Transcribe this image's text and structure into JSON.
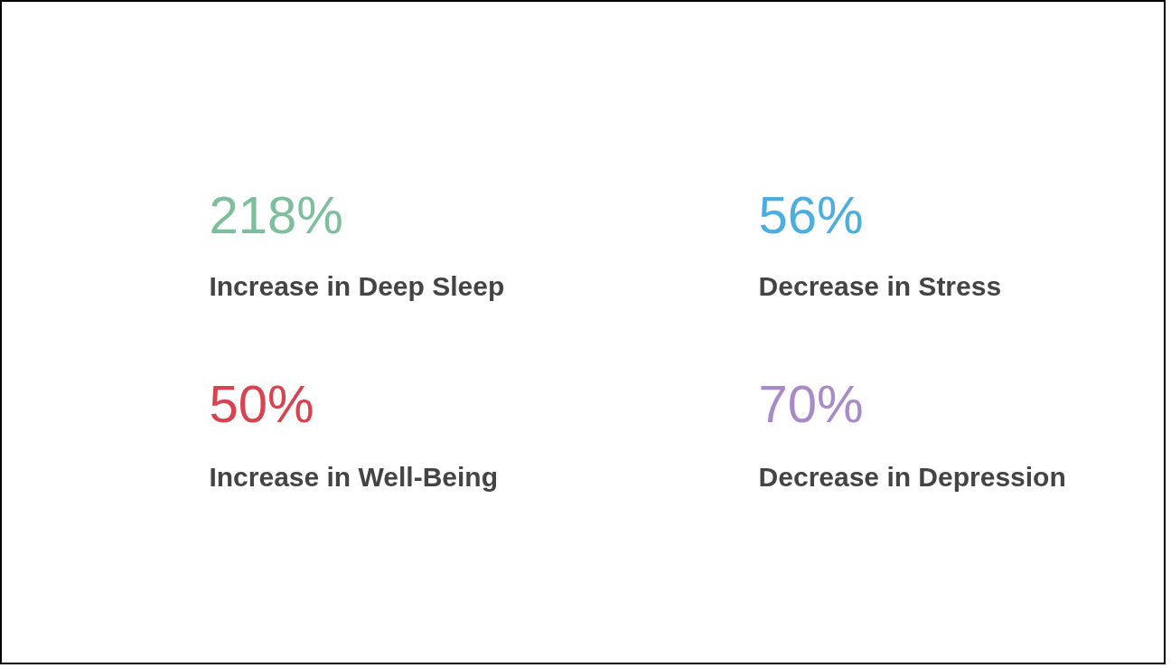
{
  "chart_data": {
    "type": "other",
    "categories": [
      "Increase in Deep Sleep",
      "Decrease in Stress",
      "Increase in Well-Being",
      "Decrease in Depression"
    ],
    "values": [
      218,
      56,
      50,
      70
    ],
    "value_labels": [
      "218%",
      "56%",
      "50%",
      "70%"
    ],
    "colors": [
      "#7dbf9c",
      "#4aaede",
      "#d9434f",
      "#a98ac9"
    ]
  }
}
